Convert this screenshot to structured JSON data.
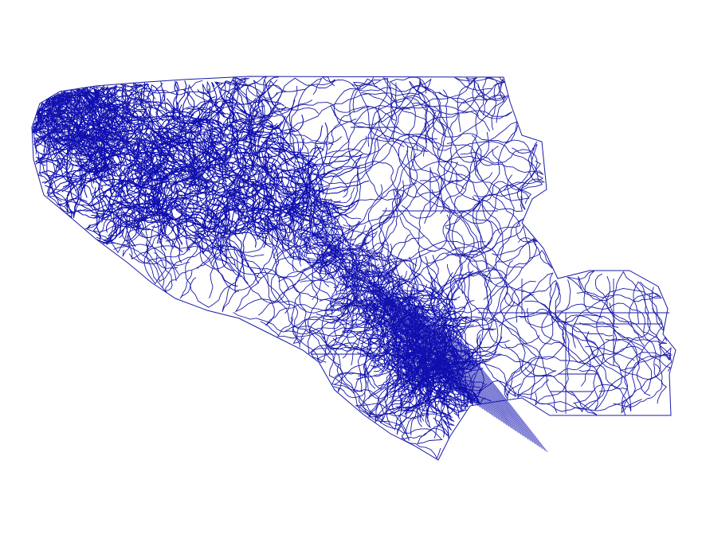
{
  "map": {
    "style": {
      "line_color": "#1a1aa6",
      "dense_color": "#1010b0",
      "background": "#ffffff"
    }
  }
}
